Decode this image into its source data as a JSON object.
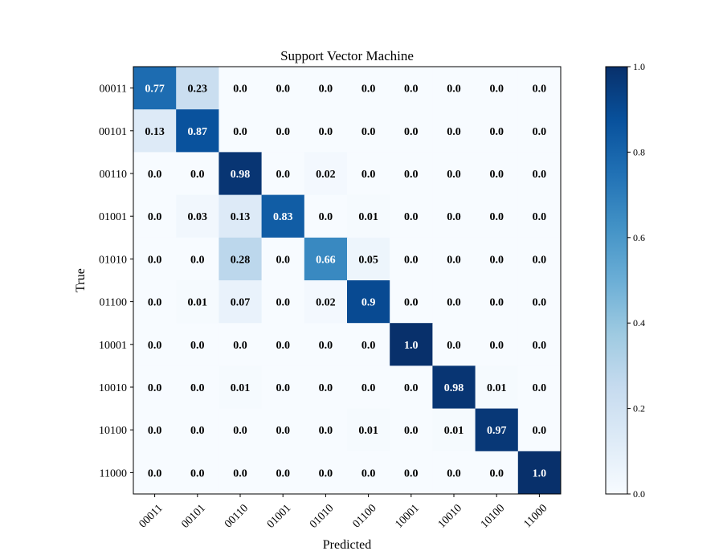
{
  "chart_data": {
    "type": "heatmap",
    "title": "Support Vector Machine",
    "xlabel": "Predicted",
    "ylabel": "True",
    "x_categories": [
      "00011",
      "00101",
      "00110",
      "01001",
      "01010",
      "01100",
      "10001",
      "10010",
      "10100",
      "11000"
    ],
    "y_categories": [
      "00011",
      "00101",
      "00110",
      "01001",
      "01010",
      "01100",
      "10001",
      "10010",
      "10100",
      "11000"
    ],
    "values": [
      [
        0.77,
        0.23,
        0.0,
        0.0,
        0.0,
        0.0,
        0.0,
        0.0,
        0.0,
        0.0
      ],
      [
        0.13,
        0.87,
        0.0,
        0.0,
        0.0,
        0.0,
        0.0,
        0.0,
        0.0,
        0.0
      ],
      [
        0.0,
        0.0,
        0.98,
        0.0,
        0.02,
        0.0,
        0.0,
        0.0,
        0.0,
        0.0
      ],
      [
        0.0,
        0.03,
        0.13,
        0.83,
        0.0,
        0.01,
        0.0,
        0.0,
        0.0,
        0.0
      ],
      [
        0.0,
        0.0,
        0.28,
        0.0,
        0.66,
        0.05,
        0.0,
        0.0,
        0.0,
        0.0
      ],
      [
        0.0,
        0.01,
        0.07,
        0.0,
        0.02,
        0.9,
        0.0,
        0.0,
        0.0,
        0.0
      ],
      [
        0.0,
        0.0,
        0.0,
        0.0,
        0.0,
        0.0,
        1.0,
        0.0,
        0.0,
        0.0
      ],
      [
        0.0,
        0.0,
        0.01,
        0.0,
        0.0,
        0.0,
        0.0,
        0.98,
        0.01,
        0.0
      ],
      [
        0.0,
        0.0,
        0.0,
        0.0,
        0.0,
        0.01,
        0.0,
        0.01,
        0.97,
        0.0
      ],
      [
        0.0,
        0.0,
        0.0,
        0.0,
        0.0,
        0.0,
        0.0,
        0.0,
        0.0,
        1.0
      ]
    ],
    "cell_labels": [
      [
        "0.77",
        "0.23",
        "0.0",
        "0.0",
        "0.0",
        "0.0",
        "0.0",
        "0.0",
        "0.0",
        "0.0"
      ],
      [
        "0.13",
        "0.87",
        "0.0",
        "0.0",
        "0.0",
        "0.0",
        "0.0",
        "0.0",
        "0.0",
        "0.0"
      ],
      [
        "0.0",
        "0.0",
        "0.98",
        "0.0",
        "0.02",
        "0.0",
        "0.0",
        "0.0",
        "0.0",
        "0.0"
      ],
      [
        "0.0",
        "0.03",
        "0.13",
        "0.83",
        "0.0",
        "0.01",
        "0.0",
        "0.0",
        "0.0",
        "0.0"
      ],
      [
        "0.0",
        "0.0",
        "0.28",
        "0.0",
        "0.66",
        "0.05",
        "0.0",
        "0.0",
        "0.0",
        "0.0"
      ],
      [
        "0.0",
        "0.01",
        "0.07",
        "0.0",
        "0.02",
        "0.9",
        "0.0",
        "0.0",
        "0.0",
        "0.0"
      ],
      [
        "0.0",
        "0.0",
        "0.0",
        "0.0",
        "0.0",
        "0.0",
        "1.0",
        "0.0",
        "0.0",
        "0.0"
      ],
      [
        "0.0",
        "0.0",
        "0.01",
        "0.0",
        "0.0",
        "0.0",
        "0.0",
        "0.98",
        "0.01",
        "0.0"
      ],
      [
        "0.0",
        "0.0",
        "0.0",
        "0.0",
        "0.0",
        "0.01",
        "0.0",
        "0.01",
        "0.97",
        "0.0"
      ],
      [
        "0.0",
        "0.0",
        "0.0",
        "0.0",
        "0.0",
        "0.0",
        "0.0",
        "0.0",
        "0.0",
        "1.0"
      ]
    ],
    "colormap": "Blues",
    "colormap_stops": [
      "#f7fbff",
      "#deebf7",
      "#c6dbef",
      "#9ecae1",
      "#6baed6",
      "#4292c6",
      "#2171b5",
      "#08519c",
      "#08306b"
    ],
    "value_range": [
      0.0,
      1.0
    ],
    "colorbar": {
      "ticks": [
        0.0,
        0.2,
        0.4,
        0.6,
        0.8,
        1.0
      ],
      "tick_labels": [
        "0.0",
        "0.2",
        "0.4",
        "0.6",
        "0.8",
        "1.0"
      ]
    },
    "text_color_threshold": 0.5,
    "text_color_dark": "#000000",
    "text_color_light": "#ffffff",
    "x_tick_rotation": "45 degrees"
  }
}
